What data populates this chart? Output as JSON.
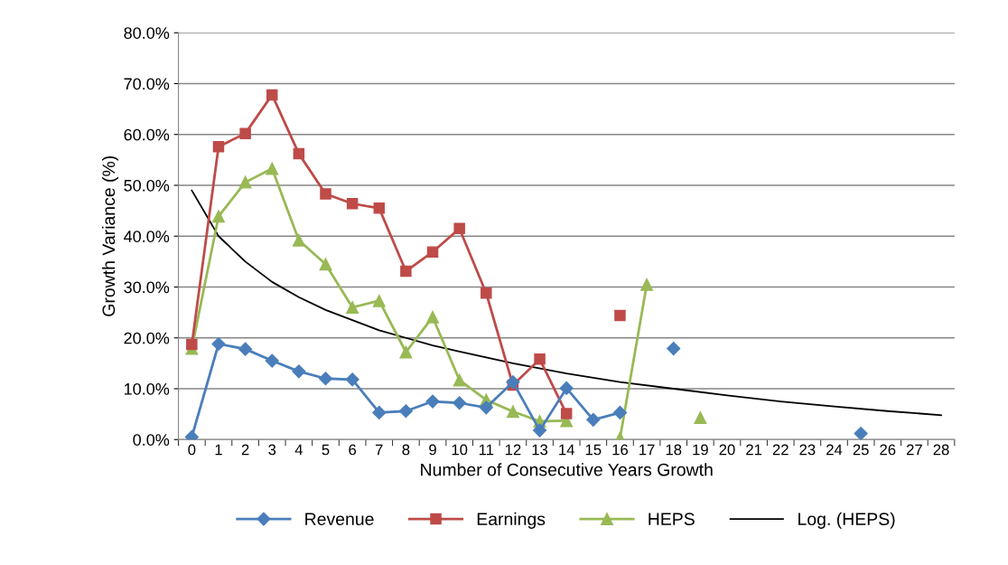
{
  "chart_data": {
    "type": "line",
    "xlabel": "Number of Consecutive Years Growth",
    "ylabel": "Growth Variance (%)",
    "categories": [
      "0",
      "1",
      "2",
      "3",
      "4",
      "5",
      "6",
      "7",
      "8",
      "9",
      "10",
      "11",
      "12",
      "13",
      "14",
      "15",
      "16",
      "17",
      "18",
      "19",
      "20",
      "21",
      "22",
      "23",
      "24",
      "25",
      "26",
      "27",
      "28"
    ],
    "series": [
      {
        "name": "Revenue",
        "color": "#4a7ebb",
        "marker": "diamond",
        "values": [
          0.5,
          18.8,
          17.8,
          15.5,
          13.4,
          12.0,
          11.8,
          5.3,
          5.6,
          7.5,
          7.2,
          6.3,
          11.3,
          1.8,
          10.1,
          3.9,
          5.3,
          null,
          17.9,
          null,
          null,
          null,
          null,
          null,
          null,
          1.2,
          null,
          null,
          null
        ]
      },
      {
        "name": "Earnings",
        "color": "#be4b48",
        "marker": "square",
        "values": [
          18.7,
          57.6,
          60.2,
          67.8,
          56.2,
          48.3,
          46.4,
          45.5,
          33.1,
          36.9,
          41.5,
          28.8,
          10.7,
          15.8,
          5.1,
          null,
          24.4,
          null,
          null,
          null,
          null,
          null,
          null,
          null,
          null,
          null,
          null,
          null,
          null
        ]
      },
      {
        "name": "HEPS",
        "color": "#98b954",
        "marker": "triangle",
        "values": [
          17.9,
          43.9,
          50.6,
          53.3,
          39.2,
          34.5,
          26.0,
          27.3,
          17.2,
          24.1,
          11.7,
          7.8,
          5.5,
          3.6,
          3.7,
          null,
          0.3,
          30.5,
          null,
          4.3,
          null,
          null,
          null,
          null,
          null,
          null,
          null,
          null,
          null
        ]
      },
      {
        "name": "Log. (HEPS)",
        "color": "#000000",
        "marker": "none",
        "x": [
          "0",
          "1",
          "2",
          "3",
          "4",
          "5",
          "6",
          "7",
          "8",
          "9",
          "10",
          "12",
          "14",
          "16",
          "18",
          "20",
          "22",
          "24",
          "26",
          "28"
        ],
        "values": [
          49,
          40,
          35,
          31,
          28,
          25.5,
          23.5,
          21.5,
          20,
          18.5,
          17.3,
          15,
          13,
          11.3,
          10,
          8.7,
          7.5,
          6.5,
          5.6,
          4.8
        ]
      }
    ],
    "ylim": [
      0,
      80
    ],
    "yticks": [
      {
        "value": 0,
        "label": "0.0%"
      },
      {
        "value": 10,
        "label": "10.0%"
      },
      {
        "value": 20,
        "label": "20.0%"
      },
      {
        "value": 30,
        "label": "30.0%"
      },
      {
        "value": 40,
        "label": "40.0%"
      },
      {
        "value": 50,
        "label": "50.0%"
      },
      {
        "value": 60,
        "label": "60.0%"
      },
      {
        "value": 70,
        "label": "70.0%"
      },
      {
        "value": 80,
        "label": "80.0%"
      }
    ],
    "grid": "y",
    "legend": "bottom",
    "line_style": "solid"
  }
}
